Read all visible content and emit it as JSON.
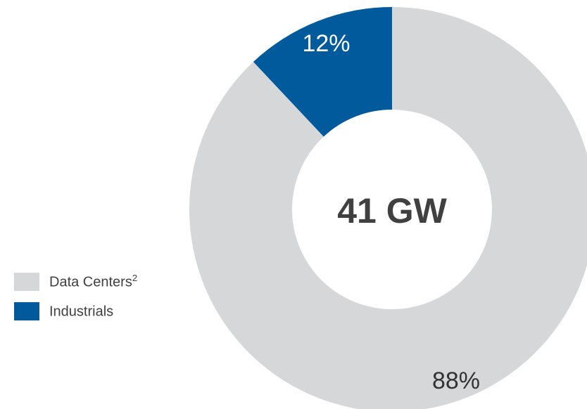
{
  "chart_data": {
    "type": "pie",
    "variant": "donut",
    "center_label": "41 GW",
    "slices": [
      {
        "name": "Industrials",
        "value": 12,
        "label": "12%",
        "color": "#005A9C",
        "label_color": "#FFFFFF"
      },
      {
        "name": "Data Centers",
        "superscript": "2",
        "value": 88,
        "label": "88%",
        "color": "#D6D7D9",
        "label_color": "#333333"
      }
    ],
    "legend": {
      "placement": "left",
      "items": [
        {
          "name": "Data Centers",
          "superscript": "2",
          "color": "#D6D7D9"
        },
        {
          "name": "Industrials",
          "superscript": "",
          "color": "#005A9C"
        }
      ]
    }
  }
}
